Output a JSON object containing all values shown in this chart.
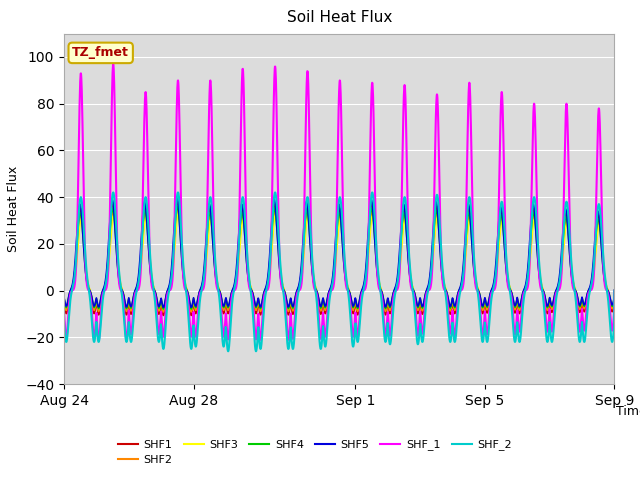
{
  "title": "Soil Heat Flux",
  "xlabel": "Time",
  "ylabel": "Soil Heat Flux",
  "ylim": [
    -40,
    110
  ],
  "yticks": [
    -40,
    -20,
    0,
    20,
    40,
    60,
    80,
    100
  ],
  "background_color": "#ffffff",
  "plot_bg_color": "#dcdcdc",
  "annotation_text": "TZ_fmet",
  "annotation_bg": "#ffffcc",
  "annotation_border": "#ccaa00",
  "annotation_text_color": "#aa0000",
  "series_order": [
    "SHF1",
    "SHF2",
    "SHF3",
    "SHF4",
    "SHF5",
    "SHF_1",
    "SHF_2"
  ],
  "series": {
    "SHF1": {
      "color": "#cc0000",
      "lw": 1.2
    },
    "SHF2": {
      "color": "#ff8800",
      "lw": 1.2
    },
    "SHF3": {
      "color": "#ffff00",
      "lw": 1.2
    },
    "SHF4": {
      "color": "#00cc00",
      "lw": 1.2
    },
    "SHF5": {
      "color": "#0000dd",
      "lw": 1.2
    },
    "SHF_1": {
      "color": "#ff00ff",
      "lw": 1.5
    },
    "SHF_2": {
      "color": "#00cccc",
      "lw": 1.5
    }
  },
  "xtick_labels": [
    "Aug 24",
    "Aug 28",
    "Sep 1",
    "Sep 5",
    "Sep 9"
  ],
  "xtick_positions": [
    0,
    4,
    9,
    13,
    17
  ],
  "n_days": 17,
  "samples_per_day": 144
}
